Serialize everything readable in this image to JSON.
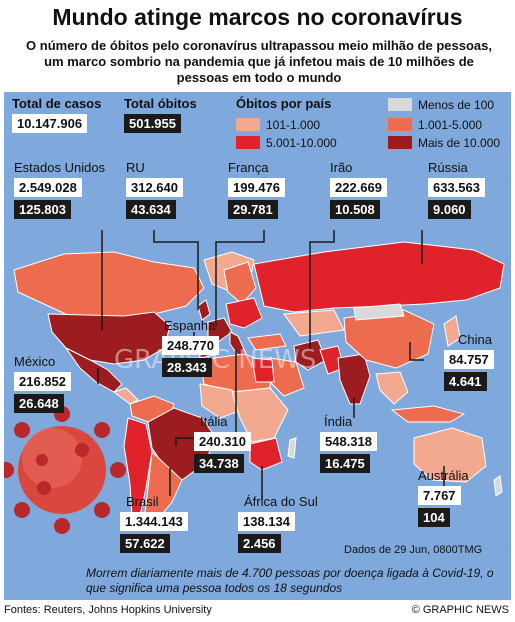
{
  "header": {
    "title": "Mundo atinge marcos no coronavírus",
    "subtitle": "O número de óbitos pelo coronavírus ultrapassou meio milhão de pessoas, um marco sombrio na pandemia que já infetou mais de 10 milhões de pessoas em todo o mundo"
  },
  "totals": {
    "cases_label": "Total de casos",
    "cases_value": "10.147.906",
    "deaths_label": "Total óbitos",
    "deaths_value": "501.955"
  },
  "legend": {
    "title": "Óbitos por país",
    "items": [
      {
        "label": "101-1.000",
        "color": "#f2a98f"
      },
      {
        "label": "5.001-10.000",
        "color": "#e0232b"
      },
      {
        "label": "Menos de 100",
        "color": "#d9d9d9"
      },
      {
        "label": "1.001-5.000",
        "color": "#ed6b4f"
      },
      {
        "label": "Mais de 10.000",
        "color": "#9c1c20"
      }
    ]
  },
  "countries": {
    "usa": {
      "name": "Estados Unidos",
      "cases": "2.549.028",
      "deaths": "125.803"
    },
    "uk": {
      "name": "RU",
      "cases": "312.640",
      "deaths": "43.634"
    },
    "france": {
      "name": "França",
      "cases": "199.476",
      "deaths": "29.781"
    },
    "iran": {
      "name": "Irão",
      "cases": "222.669",
      "deaths": "10.508"
    },
    "russia": {
      "name": "Rússia",
      "cases": "633.563",
      "deaths": "9.060"
    },
    "spain": {
      "name": "Espanha",
      "cases": "248.770",
      "deaths": "28.343"
    },
    "mexico": {
      "name": "México",
      "cases": "216.852",
      "deaths": "26.648"
    },
    "china": {
      "name": "China",
      "cases": "84.757",
      "deaths": "4.641"
    },
    "italy": {
      "name": "Itália",
      "cases": "240.310",
      "deaths": "34.738"
    },
    "india": {
      "name": "Índia",
      "cases": "548.318",
      "deaths": "16.475"
    },
    "australia": {
      "name": "Austrália",
      "cases": "7.767",
      "deaths": "104"
    },
    "brazil": {
      "name": "Brasil",
      "cases": "1.344.143",
      "deaths": "57.622"
    },
    "south_africa": {
      "name": "África do Sul",
      "cases": "138.134",
      "deaths": "2.456"
    }
  },
  "date_note": "Dados de 29 Jun, 0800TMG",
  "footnote": "Morrem diariamente mais de 4.700 pessoas por doença ligada à Covid-19, o que significa uma pessoa todos os 18 segundos",
  "footer": {
    "sources": "Fontes: Reuters, Johns Hopkins University",
    "credit": "© GRAPHIC NEWS"
  },
  "watermark": "GRAPHIC NEWS"
}
